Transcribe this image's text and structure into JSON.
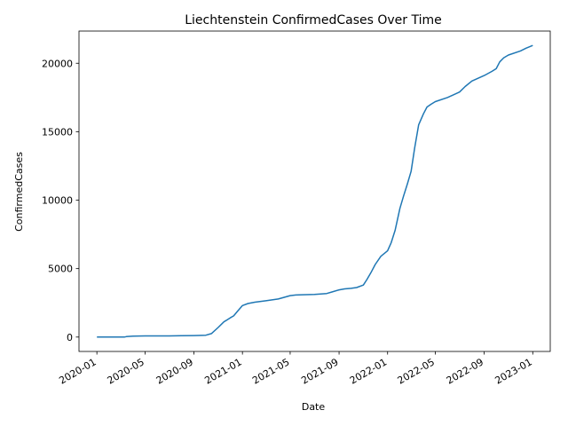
{
  "chart_data": {
    "type": "line",
    "title": "Liechtenstein  ConfirmedCases Over Time",
    "xlabel": "Date",
    "ylabel": "ConfirmedCases",
    "x_ticks": [
      "2020-01",
      "2020-05",
      "2020-09",
      "2021-01",
      "2021-05",
      "2021-09",
      "2022-01",
      "2022-05",
      "2022-09",
      "2023-01"
    ],
    "y_ticks": [
      0,
      5000,
      10000,
      15000,
      20000
    ],
    "ylim": [
      -1050,
      22350
    ],
    "xlim": [
      "2019-11-17",
      "2023-02-14"
    ],
    "grid": false,
    "legend": "none",
    "series": [
      {
        "color": "#1f77b4",
        "points": [
          [
            "2020-01-01",
            0
          ],
          [
            "2020-02-01",
            0
          ],
          [
            "2020-03-10",
            0
          ],
          [
            "2020-03-15",
            30
          ],
          [
            "2020-04-01",
            70
          ],
          [
            "2020-05-01",
            82
          ],
          [
            "2020-06-01",
            84
          ],
          [
            "2020-07-01",
            86
          ],
          [
            "2020-08-01",
            95
          ],
          [
            "2020-09-01",
            110
          ],
          [
            "2020-10-01",
            135
          ],
          [
            "2020-10-15",
            250
          ],
          [
            "2020-11-01",
            700
          ],
          [
            "2020-11-15",
            1100
          ],
          [
            "2020-12-01",
            1400
          ],
          [
            "2020-12-10",
            1550
          ],
          [
            "2020-12-20",
            1900
          ],
          [
            "2021-01-01",
            2300
          ],
          [
            "2021-01-15",
            2450
          ],
          [
            "2021-02-01",
            2550
          ],
          [
            "2021-03-01",
            2650
          ],
          [
            "2021-04-01",
            2780
          ],
          [
            "2021-04-15",
            2900
          ],
          [
            "2021-05-01",
            3030
          ],
          [
            "2021-05-15",
            3070
          ],
          [
            "2021-06-01",
            3090
          ],
          [
            "2021-07-01",
            3120
          ],
          [
            "2021-08-01",
            3180
          ],
          [
            "2021-08-15",
            3300
          ],
          [
            "2021-09-01",
            3450
          ],
          [
            "2021-09-15",
            3520
          ],
          [
            "2021-10-01",
            3560
          ],
          [
            "2021-10-15",
            3620
          ],
          [
            "2021-11-01",
            3800
          ],
          [
            "2021-11-10",
            4200
          ],
          [
            "2021-11-20",
            4700
          ],
          [
            "2021-12-01",
            5300
          ],
          [
            "2021-12-15",
            5900
          ],
          [
            "2022-01-01",
            6300
          ],
          [
            "2022-01-10",
            6900
          ],
          [
            "2022-01-20",
            7800
          ],
          [
            "2022-02-01",
            9400
          ],
          [
            "2022-02-10",
            10300
          ],
          [
            "2022-02-20",
            11200
          ],
          [
            "2022-03-01",
            12100
          ],
          [
            "2022-03-10",
            13800
          ],
          [
            "2022-03-20",
            15500
          ],
          [
            "2022-04-01",
            16300
          ],
          [
            "2022-04-10",
            16800
          ],
          [
            "2022-04-20",
            17000
          ],
          [
            "2022-05-01",
            17200
          ],
          [
            "2022-06-01",
            17500
          ],
          [
            "2022-07-01",
            17900
          ],
          [
            "2022-07-15",
            18300
          ],
          [
            "2022-08-01",
            18700
          ],
          [
            "2022-09-01",
            19100
          ],
          [
            "2022-09-20",
            19400
          ],
          [
            "2022-10-01",
            19600
          ],
          [
            "2022-10-10",
            20100
          ],
          [
            "2022-10-20",
            20400
          ],
          [
            "2022-11-01",
            20600
          ],
          [
            "2022-12-01",
            20900
          ],
          [
            "2022-12-15",
            21100
          ],
          [
            "2023-01-01",
            21300
          ]
        ]
      }
    ]
  }
}
